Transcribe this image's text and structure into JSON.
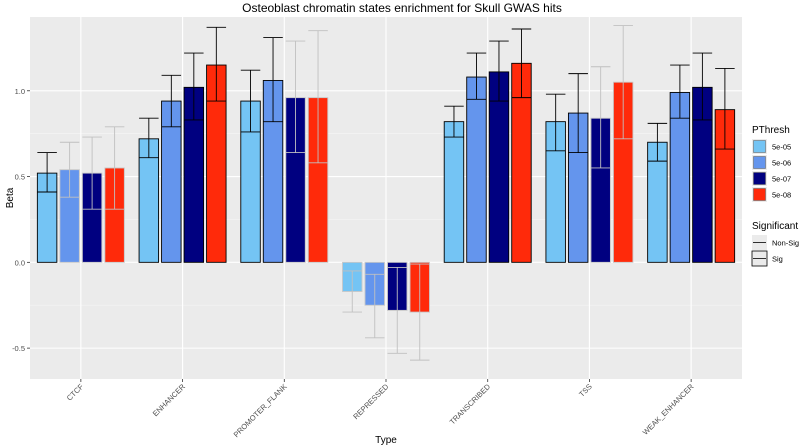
{
  "chart_data": {
    "type": "bar",
    "title": "Osteoblast chromatin states enrichment for Skull GWAS hits",
    "xlabel": "Type",
    "ylabel": "Beta",
    "ylim": [
      -0.68,
      1.43
    ],
    "yticks": [
      -0.5,
      0.0,
      0.5,
      1.0
    ],
    "ytick_labels": [
      "-0.5",
      "0.0",
      "0.5",
      "1.0"
    ],
    "grid": true,
    "categories": [
      "CTCF",
      "ENHANCER",
      "PROMOTER_FLANK",
      "REPRESSED",
      "TRANSCRIBED",
      "TSS",
      "WEAK_ENHANCER"
    ],
    "legend_placement": "right",
    "legend_fill_title": "PThresh",
    "legend_sig_title": "Significant",
    "legend_sig_labels": [
      "Non-Sig",
      "Sig"
    ],
    "series": [
      {
        "name": "5e-05",
        "color": "#74c4f4",
        "values": [
          0.52,
          0.72,
          0.94,
          -0.17,
          0.82,
          0.82,
          0.7
        ],
        "err_low": [
          0.41,
          0.61,
          0.76,
          -0.29,
          0.73,
          0.65,
          0.59
        ],
        "err_high": [
          0.64,
          0.84,
          1.12,
          -0.05,
          0.91,
          0.98,
          0.81
        ],
        "significant": [
          true,
          true,
          true,
          false,
          true,
          true,
          true
        ]
      },
      {
        "name": "5e-06",
        "color": "#6495ed",
        "values": [
          0.54,
          0.94,
          1.06,
          -0.25,
          1.08,
          0.87,
          0.99
        ],
        "err_low": [
          0.38,
          0.79,
          0.82,
          -0.44,
          0.95,
          0.64,
          0.84
        ],
        "err_high": [
          0.7,
          1.09,
          1.31,
          -0.07,
          1.22,
          1.1,
          1.15
        ],
        "significant": [
          false,
          true,
          true,
          false,
          true,
          true,
          true
        ]
      },
      {
        "name": "5e-07",
        "color": "#000080",
        "values": [
          0.52,
          1.02,
          0.96,
          -0.28,
          1.11,
          0.84,
          1.02
        ],
        "err_low": [
          0.31,
          0.83,
          0.64,
          -0.53,
          0.94,
          0.55,
          0.83
        ],
        "err_high": [
          0.73,
          1.22,
          1.29,
          -0.03,
          1.29,
          1.14,
          1.22
        ],
        "significant": [
          false,
          true,
          false,
          false,
          true,
          false,
          true
        ]
      },
      {
        "name": "5e-08",
        "color": "#ff2a0a",
        "values": [
          0.55,
          1.15,
          0.96,
          -0.29,
          1.16,
          1.05,
          0.89
        ],
        "err_low": [
          0.31,
          0.94,
          0.58,
          -0.57,
          0.96,
          0.72,
          0.66
        ],
        "err_high": [
          0.79,
          1.37,
          1.35,
          -0.01,
          1.36,
          1.38,
          1.13
        ],
        "significant": [
          false,
          true,
          false,
          false,
          true,
          false,
          true
        ]
      }
    ]
  }
}
